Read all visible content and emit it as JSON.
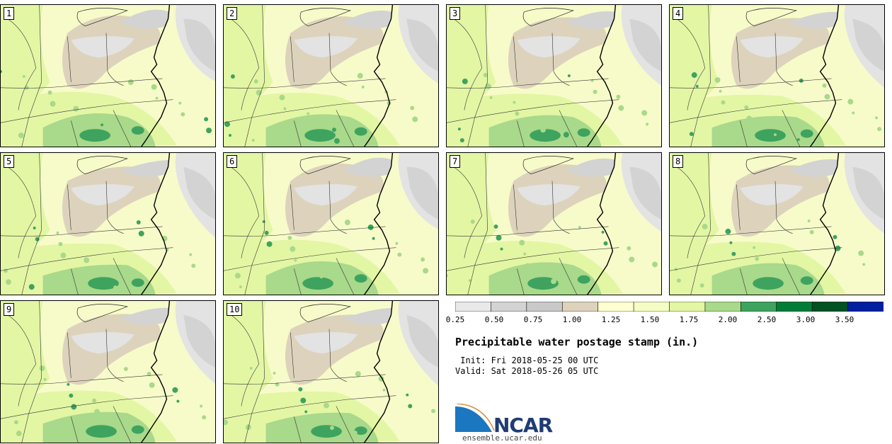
{
  "panels": [
    {
      "label": "1"
    },
    {
      "label": "2"
    },
    {
      "label": "3"
    },
    {
      "label": "4"
    },
    {
      "label": "5"
    },
    {
      "label": "6"
    },
    {
      "label": "7"
    },
    {
      "label": "8"
    },
    {
      "label": "9"
    },
    {
      "label": "10"
    }
  ],
  "legend": {
    "ticks": [
      "0.25",
      "0.50",
      "0.75",
      "1.00",
      "1.25",
      "1.50",
      "1.75",
      "2.00",
      "2.50",
      "3.00",
      "3.50"
    ],
    "colors": [
      "#e9e9e9",
      "#d3d3d3",
      "#c9c9c9",
      "#ddd3bc",
      "#fefed0",
      "#f5fcc4",
      "#e3f6a4",
      "#a9d98a",
      "#3ea35f",
      "#007e38",
      "#005224",
      "#0020a0"
    ]
  },
  "title": "Precipitable water postage stamp (in.)",
  "init_line": " Init: Fri 2018-05-25 00 UTC",
  "valid_line": "Valid: Sat 2018-05-26 05 UTC",
  "logo": {
    "text": "NCAR",
    "url": "ensemble.ucar.edu"
  },
  "map_colors": {
    "base": "#f7fbc9",
    "light_green": "#e3f6a4",
    "mid_green": "#a9d98a",
    "dark_green": "#3ea35f",
    "tan": "#ddd3bc",
    "gray": "#d3d3d3",
    "lightgray": "#e3e3e3"
  }
}
